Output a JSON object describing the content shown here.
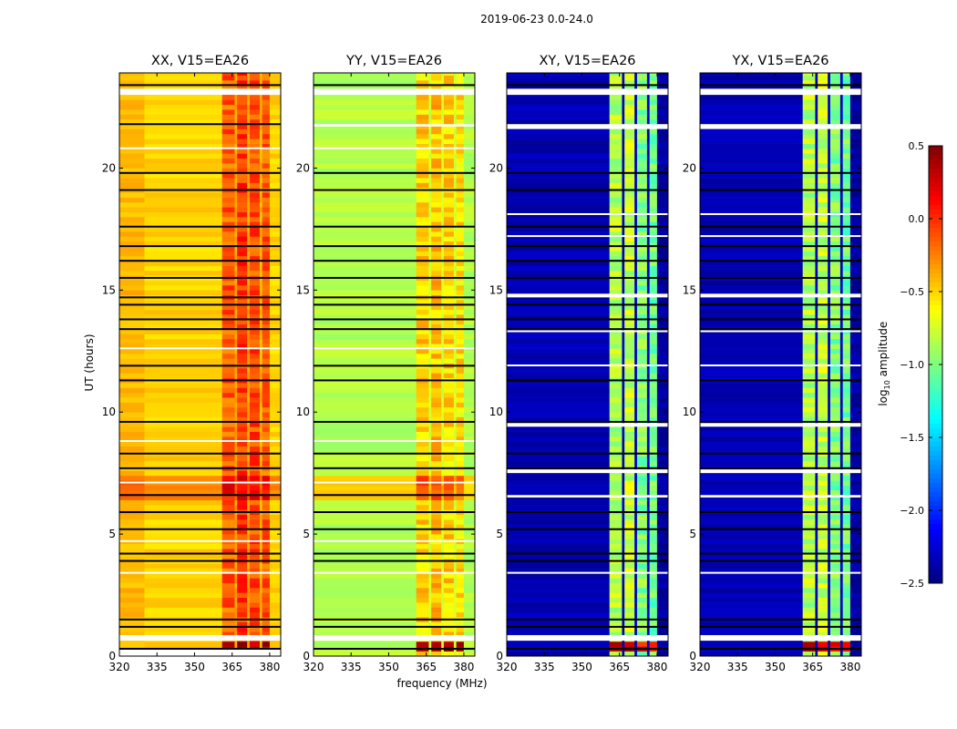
{
  "suptitle": "2019-06-23 0.0-24.0",
  "xlabel": "frequency (MHz)",
  "ylabel": "UT (hours)",
  "colorbar": {
    "label_prefix": "log",
    "label_sub": "10",
    "label_suffix": " amplitude",
    "vmin": -2.5,
    "vmax": 0.5,
    "colormap": "jet",
    "ticks": [
      "0.5",
      "0.0",
      "−0.5",
      "−1.0",
      "−1.5",
      "−2.0",
      "−2.5"
    ],
    "tick_values": [
      0.5,
      0.0,
      -0.5,
      -1.0,
      -1.5,
      -2.0,
      -2.5
    ]
  },
  "chart_data": [
    {
      "type": "heatmap",
      "title": "XX, V15=EA26",
      "xlim": [
        320,
        384.4
      ],
      "ylim": [
        0,
        23.9
      ],
      "xticks": [
        320,
        335,
        350,
        365,
        380
      ],
      "yticks": [
        0,
        5,
        10,
        15,
        20
      ],
      "freq_segments": [
        [
          320,
          330,
          -0.42,
          false
        ],
        [
          330,
          361,
          -0.5,
          false
        ],
        [
          361,
          366,
          -0.15,
          true
        ],
        [
          366,
          367,
          -0.35,
          false
        ],
        [
          367,
          371,
          -0.05,
          true
        ],
        [
          371,
          372,
          -0.35,
          false
        ],
        [
          372,
          376,
          -0.1,
          true
        ],
        [
          376,
          377,
          -0.4,
          false
        ],
        [
          377,
          380,
          -0.15,
          true
        ],
        [
          380,
          384.4,
          -0.5,
          false
        ]
      ],
      "time_offsets": [
        [
          6.5,
          7.5,
          0.25,
          0.0
        ],
        [
          0.3,
          0.7,
          0.0,
          0.5
        ]
      ],
      "flagged_white": [
        [
          0,
          0.3
        ],
        [
          0.63,
          0.86
        ],
        [
          23.0,
          23.25
        ],
        [
          3.4,
          3.45
        ],
        [
          4.7,
          4.75
        ],
        [
          7.1,
          7.15
        ],
        [
          8.8,
          8.85
        ],
        [
          12.6,
          12.65
        ],
        [
          20.8,
          20.85
        ]
      ],
      "flagged_black": [
        23.4,
        21.8,
        19.8,
        19.1,
        17.6,
        16.8,
        16.2,
        15.5,
        14.7,
        14.4,
        13.8,
        13.4,
        11.9,
        11.3,
        9.6,
        8.3,
        7.7,
        6.6,
        5.9,
        5.2,
        4.2,
        3.9,
        1.5,
        1.2,
        0.3
      ]
    },
    {
      "type": "heatmap",
      "title": "YY, V15=EA26",
      "xlim": [
        320,
        384.4
      ],
      "ylim": [
        0,
        23.9
      ],
      "xticks": [
        320,
        335,
        350,
        365,
        380
      ],
      "yticks": [
        0,
        5,
        10,
        15,
        20
      ],
      "freq_segments": [
        [
          320,
          361,
          -0.85,
          false
        ],
        [
          361,
          366,
          -0.5,
          true
        ],
        [
          366,
          367,
          -0.75,
          false
        ],
        [
          367,
          371,
          -0.45,
          true
        ],
        [
          371,
          372,
          -0.75,
          false
        ],
        [
          372,
          376,
          -0.5,
          true
        ],
        [
          376,
          377,
          -0.75,
          false
        ],
        [
          377,
          380,
          -0.55,
          true
        ],
        [
          380,
          384.4,
          -0.85,
          false
        ]
      ],
      "time_offsets": [
        [
          6.5,
          7.5,
          0.35,
          0.0
        ],
        [
          0.3,
          0.7,
          0.0,
          0.85
        ]
      ],
      "flagged_white": [
        [
          0.63,
          0.86
        ],
        [
          23.0,
          23.25
        ],
        [
          3.4,
          3.45
        ],
        [
          4.7,
          4.75
        ],
        [
          7.1,
          7.15
        ],
        [
          8.8,
          8.85
        ],
        [
          12.6,
          12.65
        ],
        [
          20.8,
          20.85
        ],
        [
          21.7,
          21.8
        ]
      ],
      "flagged_black": [
        23.4,
        19.8,
        19.1,
        17.6,
        16.8,
        16.2,
        15.5,
        14.7,
        14.4,
        13.8,
        13.4,
        11.9,
        11.3,
        9.6,
        8.3,
        7.7,
        6.6,
        5.9,
        5.2,
        4.2,
        3.9,
        1.5,
        1.2,
        0.3
      ]
    },
    {
      "type": "heatmap",
      "title": "XY, V15=EA26",
      "xlim": [
        320,
        384.4
      ],
      "ylim": [
        0,
        23.9
      ],
      "xticks": [
        320,
        335,
        350,
        365,
        380
      ],
      "yticks": [
        0,
        5,
        10,
        15,
        20
      ],
      "freq_segments": [
        [
          320,
          361,
          -2.35,
          false
        ],
        [
          361,
          366,
          -0.85,
          true
        ],
        [
          366,
          367,
          -2.3,
          false
        ],
        [
          367,
          371,
          -0.8,
          true
        ],
        [
          371,
          372,
          -2.3,
          false
        ],
        [
          372,
          376,
          -1.0,
          true
        ],
        [
          376,
          377,
          -2.3,
          false
        ],
        [
          377,
          380,
          -1.05,
          true
        ],
        [
          380,
          384.4,
          -2.4,
          false
        ]
      ],
      "time_offsets": [
        [
          0.3,
          0.7,
          0.0,
          1.1
        ]
      ],
      "flagged_white": [
        [
          0.63,
          0.86
        ],
        [
          23.0,
          23.25
        ],
        [
          21.6,
          21.8
        ],
        [
          14.7,
          14.85
        ],
        [
          9.4,
          9.55
        ],
        [
          7.5,
          7.65
        ],
        [
          6.5,
          6.6
        ],
        [
          3.4,
          3.45
        ],
        [
          11.9,
          11.95
        ],
        [
          13.3,
          13.35
        ],
        [
          17.2,
          17.25
        ],
        [
          18.1,
          18.15
        ]
      ],
      "flagged_black": [
        23.4,
        19.8,
        19.1,
        17.6,
        16.8,
        16.2,
        15.5,
        14.4,
        13.8,
        13.4,
        11.3,
        9.6,
        8.3,
        7.7,
        5.9,
        5.2,
        4.2,
        3.9,
        1.5,
        1.2,
        0.3
      ]
    },
    {
      "type": "heatmap",
      "title": "YX, V15=EA26",
      "xlim": [
        320,
        384.4
      ],
      "ylim": [
        0,
        23.9
      ],
      "xticks": [
        320,
        335,
        350,
        365,
        380
      ],
      "yticks": [
        0,
        5,
        10,
        15,
        20
      ],
      "freq_segments": [
        [
          320,
          361,
          -2.35,
          false
        ],
        [
          361,
          366,
          -0.85,
          true
        ],
        [
          366,
          367,
          -2.3,
          false
        ],
        [
          367,
          371,
          -0.8,
          true
        ],
        [
          371,
          372,
          -2.3,
          false
        ],
        [
          372,
          376,
          -1.0,
          true
        ],
        [
          376,
          377,
          -2.3,
          false
        ],
        [
          377,
          380,
          -1.05,
          true
        ],
        [
          380,
          384.4,
          -2.4,
          false
        ]
      ],
      "time_offsets": [
        [
          0.3,
          0.7,
          0.0,
          1.1
        ]
      ],
      "flagged_white": [
        [
          0.63,
          0.86
        ],
        [
          23.0,
          23.25
        ],
        [
          21.6,
          21.8
        ],
        [
          14.7,
          14.85
        ],
        [
          9.4,
          9.55
        ],
        [
          7.5,
          7.65
        ],
        [
          6.5,
          6.6
        ],
        [
          3.4,
          3.45
        ],
        [
          11.9,
          11.95
        ],
        [
          13.3,
          13.35
        ],
        [
          17.2,
          17.25
        ],
        [
          18.1,
          18.15
        ]
      ],
      "flagged_black": [
        23.4,
        19.8,
        19.1,
        17.6,
        16.8,
        16.2,
        15.5,
        14.4,
        13.8,
        13.4,
        11.3,
        9.6,
        8.3,
        7.7,
        5.9,
        5.2,
        4.2,
        3.9,
        1.5,
        1.2,
        0.3
      ]
    }
  ]
}
